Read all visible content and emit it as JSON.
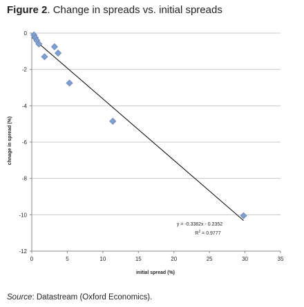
{
  "figure": {
    "label": "Figure 2",
    "title": ". Change in spreads vs. initial spreads"
  },
  "source": {
    "label": "Source",
    "text": ": Datastream (Oxford Economics)."
  },
  "chart_data": {
    "type": "scatter",
    "xlabel": "initial spread (%)",
    "ylabel": "chnage in spread (%)",
    "xlim": [
      0,
      35
    ],
    "ylim": [
      -12,
      0
    ],
    "x_ticks": [
      0,
      5,
      10,
      15,
      20,
      25,
      30,
      35
    ],
    "y_ticks": [
      0,
      -2,
      -4,
      -6,
      -8,
      -10,
      -12
    ],
    "grid": "horizontal",
    "marker_color": "#7f9fcf",
    "points": [
      {
        "x": 0.3,
        "y": -0.1
      },
      {
        "x": 0.5,
        "y": -0.25
      },
      {
        "x": 0.7,
        "y": -0.4
      },
      {
        "x": 1.0,
        "y": -0.6
      },
      {
        "x": 1.8,
        "y": -1.3
      },
      {
        "x": 3.2,
        "y": -0.75
      },
      {
        "x": 3.7,
        "y": -1.1
      },
      {
        "x": 5.3,
        "y": -2.75
      },
      {
        "x": 11.4,
        "y": -4.85
      },
      {
        "x": 29.8,
        "y": -10.05
      }
    ],
    "trendline": {
      "slope": -0.3382,
      "intercept": -0.2352
    },
    "equation": "y = -0.3382x - 0.2352",
    "r2_label": "R",
    "r2_value": " = 0.9777"
  }
}
